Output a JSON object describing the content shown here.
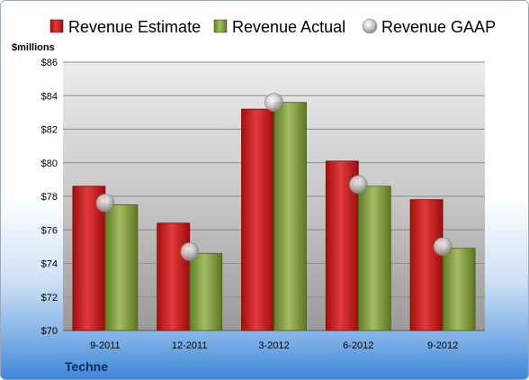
{
  "company": "Techne",
  "chart_data": {
    "type": "bar",
    "ylabel": "$millions",
    "ylim": [
      70,
      86
    ],
    "ytick_step": 2,
    "ytick_prefix": "$",
    "grid": true,
    "legend_position": "top",
    "categories": [
      "9-2011",
      "12-2011",
      "3-2012",
      "6-2012",
      "9-2012"
    ],
    "series": [
      {
        "name": "Revenue Estimate",
        "kind": "bar",
        "color": "#cc1f1f",
        "values": [
          78.6,
          76.4,
          83.2,
          80.1,
          77.8
        ]
      },
      {
        "name": "Revenue Actual",
        "kind": "bar",
        "color": "#7f9a3e",
        "values": [
          77.5,
          74.6,
          83.6,
          78.6,
          74.9
        ]
      },
      {
        "name": "Revenue GAAP",
        "kind": "marker",
        "color": "#c8c8c8",
        "values": [
          77.6,
          74.7,
          83.6,
          78.7,
          75.0
        ]
      }
    ]
  }
}
